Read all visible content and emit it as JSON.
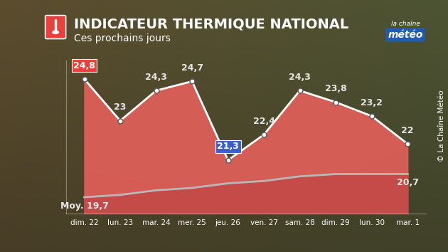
{
  "chart_data": {
    "type": "line",
    "title": "INDICATEUR THERMIQUE NATIONAL",
    "subtitle": "Ces prochains jours",
    "logo": [
      "la chaîne",
      "météo"
    ],
    "credit": "© La Chaîne Météo",
    "categories": [
      "dim. 22",
      "lun. 23",
      "mar. 24",
      "mer. 25",
      "jeu. 26",
      "ven. 27",
      "sam. 28",
      "dim. 29",
      "lun. 30",
      "mar. 1"
    ],
    "ylim": [
      19,
      25.6
    ],
    "tick_labels": "x",
    "grid": false,
    "data_labels": true,
    "series": [
      {
        "values": [
          24.8,
          23,
          24.3,
          24.7,
          21.3,
          22.4,
          24.3,
          23.8,
          23.2,
          22
        ],
        "value_labels": [
          "24,8",
          "23",
          "24,3",
          "24,7",
          "21,3",
          "22,4",
          "24,3",
          "23,8",
          "23,2",
          "22"
        ],
        "color": "#e4605a",
        "marker": "o",
        "line_style": "solid"
      },
      {
        "values": [
          19.7,
          19.8,
          20.0,
          20.1,
          20.3,
          20.4,
          20.6,
          20.7,
          20.7,
          20.7
        ],
        "value_labels": [
          "Moy. 19,7",
          null,
          null,
          null,
          null,
          null,
          null,
          null,
          null,
          "20,7"
        ],
        "color": "#b8b8b8",
        "line_style": "solid"
      }
    ]
  }
}
